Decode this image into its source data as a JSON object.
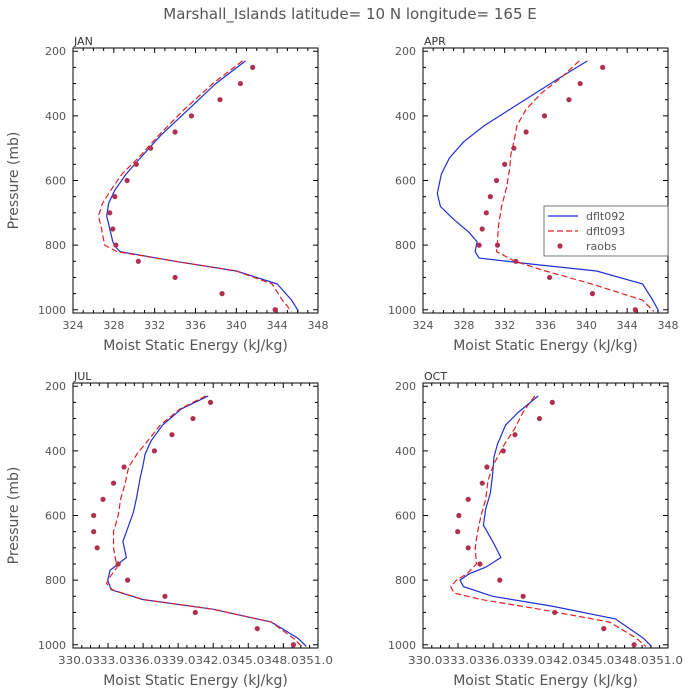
{
  "figure_title": "Marshall_Islands  latitude= 10 N longitude= 165 E",
  "colors": {
    "dflt092": "#1f2fd6",
    "dflt093": "#e02020",
    "raobs": "#b03050",
    "axis": "#000000",
    "text": "#555555"
  },
  "chart_data": [
    {
      "type": "line",
      "title": "JAN",
      "xlabel": "Moist Static Energy (kJ/kg)",
      "ylabel": "Pressure (mb)",
      "xlim": [
        324,
        348
      ],
      "ylim": [
        1010,
        190
      ],
      "xticks": [
        324,
        328,
        332,
        336,
        340,
        344,
        348
      ],
      "xtick_labels": [
        "324",
        "328",
        "332",
        "336",
        "340",
        "344",
        "348"
      ],
      "yticks": [
        200,
        400,
        600,
        800,
        1000
      ],
      "ytick_labels": [
        "200",
        "400",
        "600",
        "800",
        "1000"
      ],
      "legend": false,
      "series": [
        {
          "name": "dflt092",
          "style": "solid",
          "x": [
            340.9,
            338,
            335.3,
            332.6,
            330.6,
            329.2,
            328.1,
            327.5,
            327.3,
            327.6,
            327.9,
            328.3,
            328.6,
            334,
            340,
            344,
            345.4,
            346.1
          ],
          "y": [
            230,
            300,
            380,
            460,
            530,
            580,
            630,
            670,
            710,
            750,
            790,
            810,
            820,
            850,
            880,
            920,
            970,
            1005
          ]
        },
        {
          "name": "dflt093",
          "style": "dashed",
          "x": [
            340.6,
            337.7,
            334.9,
            332.4,
            330.4,
            328.8,
            327.7,
            326.9,
            326.5,
            326.8,
            327.1,
            328.3,
            334,
            340,
            343.5,
            344.5,
            345.4
          ],
          "y": [
            230,
            300,
            380,
            460,
            530,
            580,
            630,
            670,
            710,
            750,
            800,
            820,
            850,
            880,
            920,
            970,
            1005
          ]
        },
        {
          "name": "raobs",
          "style": "markers",
          "x": [
            341.6,
            340.4,
            338.4,
            335.6,
            334,
            331.6,
            330.2,
            329.3,
            328.1,
            327.6,
            327.9,
            328.2,
            330.4,
            334.0,
            338.6,
            343.8
          ],
          "y": [
            250,
            300,
            350,
            400,
            450,
            500,
            550,
            600,
            650,
            700,
            750,
            800,
            850,
            900,
            950,
            1000
          ]
        }
      ]
    },
    {
      "type": "line",
      "title": "APR",
      "xlabel": "Moist Static Energy (kJ/kg)",
      "ylabel": "",
      "xlim": [
        324,
        348
      ],
      "ylim": [
        1010,
        190
      ],
      "xticks": [
        324,
        328,
        332,
        336,
        340,
        344,
        348
      ],
      "xtick_labels": [
        "324",
        "328",
        "332",
        "336",
        "340",
        "344",
        "348"
      ],
      "yticks": [
        200,
        400,
        600,
        800,
        1000
      ],
      "ytick_labels": [
        "200",
        "400",
        "600",
        "800",
        "1000"
      ],
      "legend": true,
      "legend_position": "right-middle",
      "series": [
        {
          "name": "dflt092",
          "style": "solid",
          "x": [
            340.1,
            337.5,
            335,
            332.5,
            330,
            328,
            326.6,
            325.8,
            325.4,
            325.7,
            327,
            328.5,
            329.3,
            329.1,
            329.5,
            335,
            341,
            345.5,
            346.5,
            347.1
          ],
          "y": [
            230,
            280,
            330,
            380,
            430,
            480,
            530,
            580,
            640,
            680,
            720,
            760,
            790,
            820,
            840,
            860,
            880,
            920,
            970,
            1005
          ]
        },
        {
          "name": "dflt093",
          "style": "dashed",
          "x": [
            339.3,
            337.6,
            335.6,
            334.1,
            333.2,
            332.9,
            332.6,
            332.5,
            332.2,
            331.7,
            331.4,
            331.3,
            331.2,
            333,
            336,
            340.5,
            345.5,
            346.6
          ],
          "y": [
            230,
            280,
            330,
            380,
            430,
            480,
            520,
            560,
            620,
            680,
            740,
            790,
            820,
            850,
            880,
            920,
            970,
            1005
          ]
        },
        {
          "name": "raobs",
          "style": "markers",
          "x": [
            341.6,
            339.4,
            338.3,
            335.9,
            334.1,
            332.9,
            332.0,
            331.2,
            330.6,
            330.2,
            329.8,
            329.5,
            331.3,
            333.1,
            336.4,
            340.6,
            344.8
          ],
          "y": [
            250,
            300,
            350,
            400,
            450,
            500,
            550,
            600,
            650,
            700,
            750,
            800,
            800,
            850,
            900,
            950,
            1000
          ]
        }
      ]
    },
    {
      "type": "line",
      "title": "JUL",
      "xlabel": "Moist Static Energy (kJ/kg)",
      "ylabel": "Pressure (mb)",
      "xlim": [
        330.03,
        351
      ],
      "ylim": [
        1010,
        190
      ],
      "xticks": [
        330.03,
        333.03,
        336.03,
        339.03,
        342.03,
        345.03,
        348.03,
        351
      ],
      "xtick_labels": [
        "330.03",
        "33.03",
        "36.03",
        "39.03",
        "42.03",
        "45.03",
        "48.03",
        "51.0"
      ],
      "yticks": [
        200,
        400,
        600,
        800,
        1000
      ],
      "ytick_labels": [
        "200",
        "400",
        "600",
        "800",
        "1000"
      ],
      "legend": false,
      "series": [
        {
          "name": "dflt092",
          "style": "solid",
          "x": [
            341.6,
            339.3,
            337.7,
            336.7,
            336.2,
            336.0,
            335.8,
            335.5,
            335.2,
            334.7,
            334.3,
            334.6,
            333.2,
            333,
            333.3,
            336,
            342,
            347,
            349.3,
            350
          ],
          "y": [
            230,
            270,
            320,
            370,
            410,
            450,
            480,
            540,
            590,
            640,
            680,
            730,
            770,
            800,
            830,
            860,
            890,
            930,
            980,
            1005
          ]
        },
        {
          "name": "dflt093",
          "style": "dashed",
          "x": [
            341.4,
            339.2,
            337.5,
            336.4,
            335.5,
            334.8,
            334.5,
            334.1,
            333.9,
            333.5,
            333.5,
            333.8,
            333.2,
            332.9,
            333.4,
            336,
            342,
            347,
            348.9,
            349.6
          ],
          "y": [
            230,
            270,
            320,
            370,
            410,
            450,
            500,
            550,
            600,
            650,
            700,
            760,
            790,
            810,
            830,
            860,
            890,
            930,
            980,
            1005
          ]
        },
        {
          "name": "raobs",
          "style": "markers",
          "x": [
            341.8,
            340.3,
            338.5,
            337.0,
            334.4,
            333.5,
            332.6,
            331.8,
            331.8,
            332.1,
            333.9,
            334.7,
            337.9,
            340.5,
            345.8,
            348.9
          ],
          "y": [
            250,
            300,
            350,
            400,
            450,
            500,
            550,
            600,
            650,
            700,
            750,
            800,
            850,
            900,
            950,
            1000
          ]
        }
      ]
    },
    {
      "type": "line",
      "title": "OCT",
      "xlabel": "Moist Static Energy (kJ/kg)",
      "ylabel": "",
      "xlim": [
        330.03,
        351
      ],
      "ylim": [
        1010,
        190
      ],
      "xticks": [
        330.03,
        333.03,
        336.03,
        339.03,
        342.03,
        345.03,
        348.03,
        351
      ],
      "xtick_labels": [
        "330.03",
        "33.03",
        "36.03",
        "39.03",
        "42.03",
        "45.03",
        "48.03",
        "51.0"
      ],
      "yticks": [
        200,
        400,
        600,
        800,
        1000
      ],
      "ytick_labels": [
        "200",
        "400",
        "600",
        "800",
        "1000"
      ],
      "legend": false,
      "series": [
        {
          "name": "dflt092",
          "style": "solid",
          "x": [
            339.9,
            338.2,
            337.1,
            336.4,
            336.1,
            336.0,
            335.8,
            335.4,
            335.2,
            336.0,
            336.7,
            335.4,
            334.0,
            333.2,
            333.5,
            336,
            341,
            346.5,
            348.9,
            349.6
          ],
          "y": [
            230,
            280,
            320,
            380,
            420,
            470,
            530,
            580,
            630,
            680,
            730,
            760,
            780,
            800,
            820,
            850,
            880,
            920,
            980,
            1005
          ]
        },
        {
          "name": "dflt093",
          "style": "dashed",
          "x": [
            339.6,
            338.6,
            337.9,
            337.0,
            336.1,
            335.6,
            335.4,
            335.0,
            334.7,
            334.5,
            334.6,
            333.8,
            332.9,
            332.4,
            332.7,
            335,
            340,
            346,
            348.3,
            349.1
          ],
          "y": [
            230,
            280,
            330,
            380,
            440,
            490,
            550,
            600,
            650,
            700,
            750,
            780,
            800,
            820,
            840,
            860,
            890,
            930,
            980,
            1005
          ]
        },
        {
          "name": "raobs",
          "style": "markers",
          "x": [
            341.1,
            340.0,
            337.9,
            336.9,
            335.5,
            335.1,
            333.9,
            333.1,
            333.0,
            333.9,
            334.9,
            336.6,
            338.6,
            341.3,
            345.5,
            348.1
          ],
          "y": [
            250,
            300,
            350,
            400,
            450,
            500,
            550,
            600,
            650,
            700,
            750,
            800,
            850,
            900,
            950,
            1000
          ]
        }
      ]
    }
  ]
}
